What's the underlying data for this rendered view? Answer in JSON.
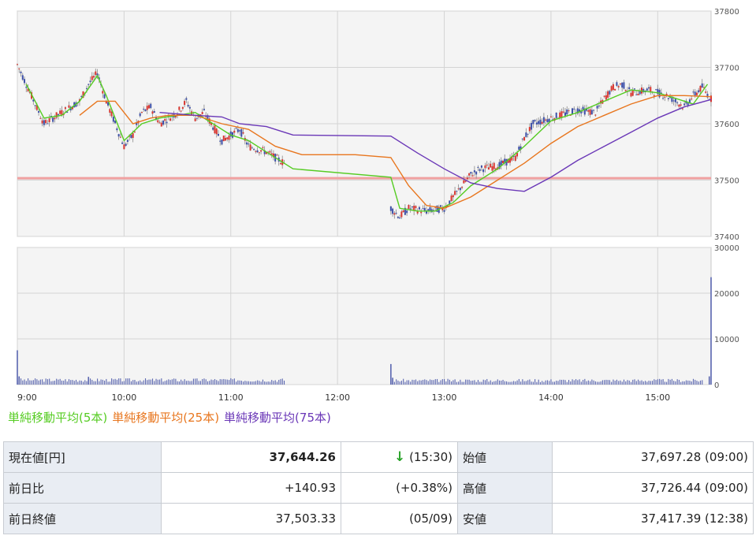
{
  "chart_data": [
    {
      "type": "candlestick",
      "y_ticks": [
        "37800",
        "37700",
        "37600",
        "37500",
        "37400"
      ],
      "ylim": [
        37400,
        37800
      ],
      "x_ticks": [
        "9:00",
        "10:00",
        "11:00",
        "12:00",
        "13:00",
        "14:00",
        "15:00"
      ],
      "reference_line": 37503.33,
      "price_path": [
        [
          "9:00",
          37705
        ],
        [
          "9:05",
          37670
        ],
        [
          "9:15",
          37600
        ],
        [
          "9:25",
          37620
        ],
        [
          "9:35",
          37640
        ],
        [
          "9:40",
          37670
        ],
        [
          "9:45",
          37690
        ],
        [
          "9:50",
          37640
        ],
        [
          "10:00",
          37560
        ],
        [
          "10:05",
          37580
        ],
        [
          "10:10",
          37620
        ],
        [
          "10:15",
          37630
        ],
        [
          "10:20",
          37600
        ],
        [
          "10:30",
          37620
        ],
        [
          "10:35",
          37640
        ],
        [
          "10:40",
          37610
        ],
        [
          "10:45",
          37620
        ],
        [
          "10:55",
          37570
        ],
        [
          "11:00",
          37580
        ],
        [
          "11:05",
          37590
        ],
        [
          "11:10",
          37560
        ],
        [
          "11:20",
          37550
        ],
        [
          "11:30",
          37530
        ],
        [
          "12:30",
          37450
        ],
        [
          "12:35",
          37435
        ],
        [
          "12:40",
          37450
        ],
        [
          "12:50",
          37445
        ],
        [
          "13:00",
          37450
        ],
        [
          "13:05",
          37470
        ],
        [
          "13:10",
          37490
        ],
        [
          "13:15",
          37510
        ],
        [
          "13:20",
          37520
        ],
        [
          "13:30",
          37525
        ],
        [
          "13:40",
          37540
        ],
        [
          "13:45",
          37575
        ],
        [
          "13:50",
          37600
        ],
        [
          "14:00",
          37610
        ],
        [
          "14:05",
          37615
        ],
        [
          "14:15",
          37625
        ],
        [
          "14:25",
          37620
        ],
        [
          "14:30",
          37645
        ],
        [
          "14:35",
          37665
        ],
        [
          "14:40",
          37670
        ],
        [
          "14:45",
          37655
        ],
        [
          "14:55",
          37660
        ],
        [
          "15:00",
          37655
        ],
        [
          "15:05",
          37650
        ],
        [
          "15:10",
          37640
        ],
        [
          "15:15",
          37630
        ],
        [
          "15:20",
          37650
        ],
        [
          "15:25",
          37665
        ],
        [
          "15:30",
          37644
        ]
      ],
      "series": [
        {
          "name": "単純移動平均(5本)",
          "color": "#55cc22",
          "points": [
            [
              "9:05",
              37670
            ],
            [
              "9:15",
              37610
            ],
            [
              "9:25",
              37615
            ],
            [
              "9:35",
              37640
            ],
            [
              "9:45",
              37685
            ],
            [
              "9:50",
              37650
            ],
            [
              "10:00",
              37570
            ],
            [
              "10:10",
              37600
            ],
            [
              "10:20",
              37610
            ],
            [
              "10:30",
              37615
            ],
            [
              "10:40",
              37620
            ],
            [
              "10:50",
              37600
            ],
            [
              "11:00",
              37580
            ],
            [
              "11:10",
              37570
            ],
            [
              "11:20",
              37550
            ],
            [
              "11:35",
              37520
            ],
            [
              "12:30",
              37505
            ],
            [
              "12:35",
              37450
            ],
            [
              "12:45",
              37445
            ],
            [
              "12:55",
              37445
            ],
            [
              "13:05",
              37460
            ],
            [
              "13:15",
              37490
            ],
            [
              "13:30",
              37520
            ],
            [
              "13:45",
              37560
            ],
            [
              "14:00",
              37605
            ],
            [
              "14:15",
              37620
            ],
            [
              "14:30",
              37640
            ],
            [
              "14:45",
              37660
            ],
            [
              "15:00",
              37655
            ],
            [
              "15:10",
              37645
            ],
            [
              "15:20",
              37635
            ],
            [
              "15:28",
              37670
            ]
          ]
        },
        {
          "name": "単純移動平均(25本)",
          "color": "#e8761e",
          "points": [
            [
              "9:35",
              37615
            ],
            [
              "9:45",
              37640
            ],
            [
              "9:55",
              37640
            ],
            [
              "10:05",
              37600
            ],
            [
              "10:15",
              37610
            ],
            [
              "10:25",
              37615
            ],
            [
              "10:40",
              37615
            ],
            [
              "10:55",
              37600
            ],
            [
              "11:10",
              37590
            ],
            [
              "11:25",
              37560
            ],
            [
              "11:40",
              37545
            ],
            [
              "12:10",
              37545
            ],
            [
              "12:30",
              37540
            ],
            [
              "12:40",
              37490
            ],
            [
              "12:50",
              37455
            ],
            [
              "13:00",
              37450
            ],
            [
              "13:15",
              37470
            ],
            [
              "13:30",
              37500
            ],
            [
              "13:45",
              37530
            ],
            [
              "14:00",
              37565
            ],
            [
              "14:15",
              37595
            ],
            [
              "14:30",
              37615
            ],
            [
              "14:45",
              37635
            ],
            [
              "15:00",
              37650
            ],
            [
              "15:15",
              37650
            ],
            [
              "15:30",
              37648
            ]
          ]
        },
        {
          "name": "単純移動平均(75本)",
          "color": "#6a37b7",
          "points": [
            [
              "10:20",
              37620
            ],
            [
              "10:40",
              37615
            ],
            [
              "10:55",
              37612
            ],
            [
              "11:05",
              37600
            ],
            [
              "11:20",
              37595
            ],
            [
              "11:35",
              37580
            ],
            [
              "12:30",
              37578
            ],
            [
              "12:45",
              37548
            ],
            [
              "13:00",
              37520
            ],
            [
              "13:15",
              37495
            ],
            [
              "13:30",
              37485
            ],
            [
              "13:45",
              37480
            ],
            [
              "14:00",
              37505
            ],
            [
              "14:15",
              37535
            ],
            [
              "14:30",
              37560
            ],
            [
              "14:45",
              37585
            ],
            [
              "15:00",
              37610
            ],
            [
              "15:15",
              37630
            ],
            [
              "15:30",
              37643
            ]
          ]
        }
      ]
    },
    {
      "type": "bar",
      "y_ticks": [
        "30000",
        "20000",
        "10000",
        "0"
      ],
      "ylim": [
        0,
        30000
      ],
      "x_ticks": [
        "9:00",
        "10:00",
        "11:00",
        "12:00",
        "13:00",
        "14:00",
        "15:00"
      ],
      "bar_color": "#5a66b0",
      "volume_segments": [
        {
          "start": "9:00",
          "end": "11:30",
          "typical": 1000
        },
        {
          "start": "12:30",
          "end": "15:25",
          "typical": 900
        }
      ],
      "spikes": [
        [
          "9:00",
          7500
        ],
        [
          "9:01",
          1800
        ],
        [
          "9:40",
          1700
        ],
        [
          "12:30",
          4500
        ],
        [
          "12:31",
          1500
        ],
        [
          "15:29",
          1800
        ],
        [
          "15:30",
          23500
        ]
      ]
    }
  ],
  "legend": {
    "ma5": "単純移動平均(5本)",
    "ma25": "単純移動平均(25本)",
    "ma75": "単純移動平均(75本)",
    "ma5_color": "#55cc22",
    "ma25_color": "#e8761e",
    "ma75_color": "#6a37b7"
  },
  "quote": {
    "current_label": "現在値[円]",
    "current_value": "37,644.26",
    "direction_arrow": "↓",
    "current_time": "(15:30)",
    "open_label": "始値",
    "open_value": "37,697.28 (09:00)",
    "change_label": "前日比",
    "change_value": "+140.93",
    "change_pct": "(+0.38%)",
    "high_label": "高値",
    "high_value": "37,726.44 (09:00)",
    "prev_close_label": "前日終値",
    "prev_close_value": "37,503.33",
    "prev_close_date": "(05/09)",
    "low_label": "安値",
    "low_value": "37,417.39 (12:38)"
  }
}
